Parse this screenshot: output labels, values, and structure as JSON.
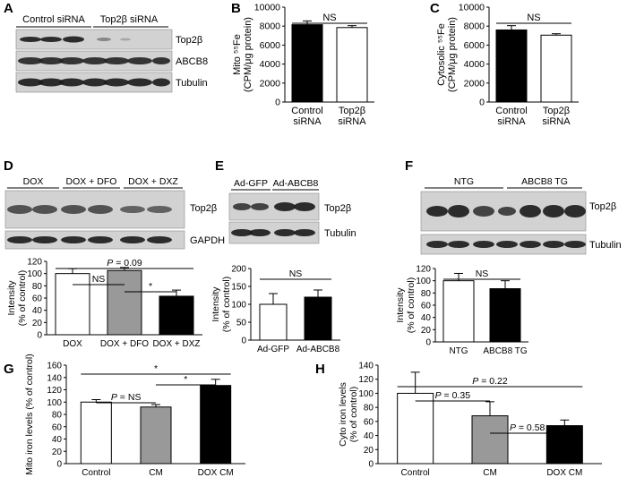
{
  "panel_letters": [
    "A",
    "B",
    "C",
    "D",
    "E",
    "F",
    "G",
    "H"
  ],
  "blots": {
    "A": {
      "groups": [
        "Control siRNA",
        "Top2β siRNA"
      ],
      "bands": [
        "Top2β",
        "ABCB8",
        "Tubulin"
      ]
    },
    "D": {
      "groups": [
        "DOX",
        "DOX + DFO",
        "DOX + DXZ"
      ],
      "bands": [
        "Top2β",
        "GAPDH"
      ]
    },
    "E": {
      "groups": [
        "Ad-GFP",
        "Ad-ABCB8"
      ],
      "bands": [
        "Top2β",
        "Tubulin"
      ]
    },
    "F": {
      "groups": [
        "NTG",
        "ABCB8 TG"
      ],
      "bands": [
        "Top2β",
        "Tubulin"
      ]
    }
  },
  "chart_data": [
    {
      "panel": "B",
      "type": "bar",
      "categories": [
        "Control siRNA",
        "Top2β siRNA"
      ],
      "values": [
        8150,
        7850
      ],
      "errors": [
        400,
        200
      ],
      "colors": [
        "#000000",
        "#ffffff"
      ],
      "ylabel": [
        "Mito ⁵⁵Fe",
        "(CPM/μg protein)"
      ],
      "ylim": [
        0,
        10000
      ],
      "yticks": [
        0,
        2000,
        4000,
        6000,
        8000,
        10000
      ],
      "annotations": [
        {
          "text": "NS",
          "from": 0,
          "to": 1
        }
      ]
    },
    {
      "panel": "C",
      "type": "bar",
      "categories": [
        "Control siRNA",
        "Top2β siRNA"
      ],
      "values": [
        7600,
        7050
      ],
      "errors": [
        450,
        150
      ],
      "colors": [
        "#000000",
        "#ffffff"
      ],
      "ylabel": [
        "Cytosolic ⁵⁵Fe",
        "(CPM/μg protein)"
      ],
      "ylim": [
        0,
        10000
      ],
      "yticks": [
        0,
        2000,
        4000,
        6000,
        8000,
        10000
      ],
      "annotations": [
        {
          "text": "NS",
          "from": 0,
          "to": 1
        }
      ]
    },
    {
      "panel": "D",
      "type": "bar",
      "categories": [
        "DOX",
        "DOX + DFO",
        "DOX + DXZ"
      ],
      "values": [
        100,
        105,
        63
      ],
      "errors": [
        8,
        5,
        10
      ],
      "colors": [
        "#ffffff",
        "#999999",
        "#000000"
      ],
      "ylabel": [
        "Intensity",
        "(% of control)"
      ],
      "ylim": [
        0,
        120
      ],
      "yticks": [
        0,
        20,
        40,
        60,
        80,
        100,
        120
      ],
      "annotations": [
        {
          "text": "P = 0.09",
          "from": 0,
          "to": 2
        },
        {
          "text": "NS",
          "from": 0,
          "to": 1
        },
        {
          "text": "*",
          "from": 1,
          "to": 2
        }
      ]
    },
    {
      "panel": "E",
      "type": "bar",
      "categories": [
        "Ad-GFP",
        "Ad-ABCB8"
      ],
      "values": [
        100,
        120
      ],
      "errors": [
        30,
        20
      ],
      "colors": [
        "#ffffff",
        "#000000"
      ],
      "ylabel": [
        "Intensity",
        "(% of control)"
      ],
      "ylim": [
        0,
        200
      ],
      "yticks": [
        0,
        50,
        100,
        150,
        200
      ],
      "annotations": [
        {
          "text": "NS",
          "from": 0,
          "to": 1
        }
      ]
    },
    {
      "panel": "F",
      "type": "bar",
      "categories": [
        "NTG",
        "ABCB8 TG"
      ],
      "values": [
        100,
        87
      ],
      "errors": [
        12,
        13
      ],
      "colors": [
        "#ffffff",
        "#000000"
      ],
      "ylabel": [
        "Intensity",
        "(% of control)"
      ],
      "ylim": [
        0,
        120
      ],
      "yticks": [
        0,
        20,
        40,
        60,
        80,
        100,
        120
      ],
      "annotations": [
        {
          "text": "NS",
          "from": 0,
          "to": 1
        }
      ]
    },
    {
      "panel": "G",
      "type": "bar",
      "categories": [
        "Control",
        "CM",
        "DOX CM"
      ],
      "values": [
        100,
        92,
        127
      ],
      "errors": [
        4,
        4,
        10
      ],
      "colors": [
        "#ffffff",
        "#999999",
        "#000000"
      ],
      "ylabel": [
        "Mito iron levels (% of control)"
      ],
      "ylim": [
        0,
        160
      ],
      "yticks": [
        0,
        20,
        40,
        60,
        80,
        100,
        120,
        140,
        160
      ],
      "annotations": [
        {
          "text": "*",
          "from": 0,
          "to": 2
        },
        {
          "text": "*",
          "from": 1,
          "to": 2
        },
        {
          "text": "P = NS",
          "from": 0,
          "to": 1
        }
      ]
    },
    {
      "panel": "H",
      "type": "bar",
      "categories": [
        "Control",
        "CM",
        "DOX CM"
      ],
      "values": [
        100,
        68,
        54
      ],
      "errors": [
        30,
        20,
        8
      ],
      "colors": [
        "#ffffff",
        "#999999",
        "#000000"
      ],
      "ylabel": [
        "Cyto iron levels",
        "(% of control)"
      ],
      "ylim": [
        0,
        140
      ],
      "yticks": [
        0,
        20,
        40,
        60,
        80,
        100,
        120,
        140
      ],
      "annotations": [
        {
          "text": "P = 0.22",
          "from": 0,
          "to": 2
        },
        {
          "text": "P = 0.35",
          "from": 0,
          "to": 1
        },
        {
          "text": "P = 0.58",
          "from": 1,
          "to": 2
        }
      ]
    }
  ]
}
